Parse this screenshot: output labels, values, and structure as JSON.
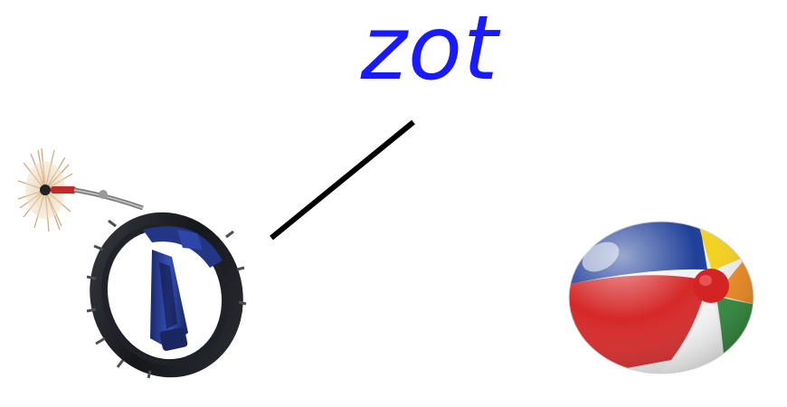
{
  "word": {
    "text": "zot",
    "color": "#1a1aff"
  },
  "images": {
    "left": "chimney-sweep-brush-reel-icon",
    "right": "beach-ball-icon"
  },
  "colors": {
    "line": "#000000",
    "background": "#ffffff"
  }
}
